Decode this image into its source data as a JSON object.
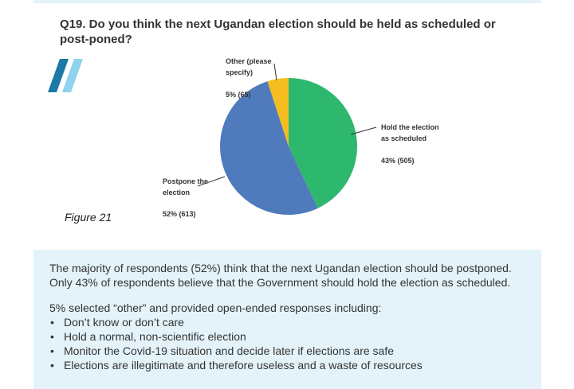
{
  "question": "Q19. Do you think the next Ugandan election should be held as scheduled or post-poned?",
  "figure_label": "Figure 21",
  "colors": {
    "accent_dark": "#1d7aa6",
    "accent_light": "#8fd3ec",
    "panel_bg": "#e3f3f9"
  },
  "chart_data": {
    "type": "pie",
    "slices": [
      {
        "label_line1": "Hold the election",
        "label_line2": "as scheduled",
        "value_label": "43% (505)",
        "percent": 43,
        "count": 505,
        "color": "#2db86d"
      },
      {
        "label_line1": "Postpone the",
        "label_line2": "election",
        "value_label": "52% (613)",
        "percent": 52,
        "count": 613,
        "color": "#4f7bbd"
      },
      {
        "label_line1": "Other (please",
        "label_line2": "specify)",
        "value_label": "5% (65)",
        "percent": 5,
        "count": 65,
        "color": "#f5bd1f"
      }
    ]
  },
  "summary": {
    "para1_line1": "The majority of respondents (52%) think that the next Ugandan election should be postponed.",
    "para1_line2": "Only 43% of respondents believe that the Government should hold the election as scheduled.",
    "para2": "5% selected “other” and provided open-ended responses including:",
    "bullets": [
      "Don’t know or don’t care",
      "Hold a normal, non-scientific election",
      "Monitor the Covid-19 situation and decide later if elections are safe",
      "Elections are illegitimate and therefore useless and a waste of resources"
    ]
  }
}
